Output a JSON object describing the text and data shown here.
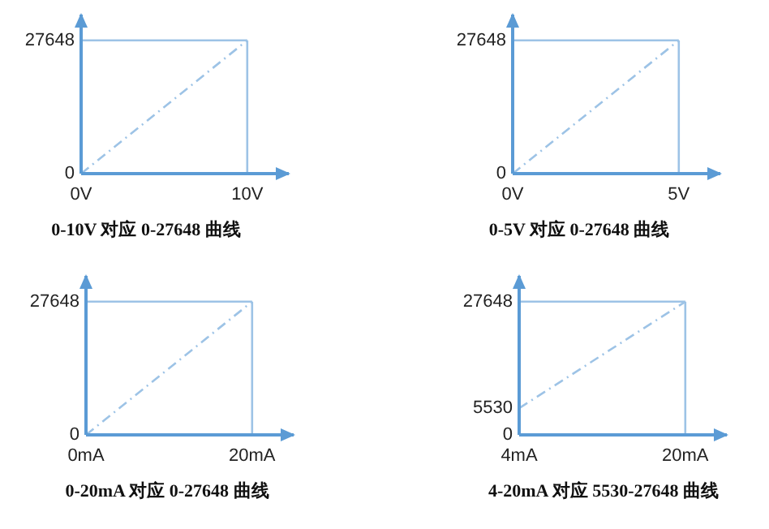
{
  "chart_data": [
    {
      "type": "line",
      "title": "0-10V 对应 0-27648 曲线",
      "x": [
        0,
        10
      ],
      "xlim": [
        0,
        12.5
      ],
      "ylim": [
        0,
        33000
      ],
      "xticks": [
        {
          "value": 0,
          "label": "0V"
        },
        {
          "value": 10,
          "label": "10V"
        }
      ],
      "yticks": [
        0,
        27648
      ],
      "series": [
        {
          "color": "#9dc3e6",
          "values": [
            0,
            27648
          ],
          "line_style": "dashed"
        }
      ],
      "ref_lines": [
        {
          "axis": "y",
          "value": 27648,
          "color": "#9dc3e6"
        },
        {
          "axis": "x",
          "value": 10,
          "color": "#9dc3e6"
        }
      ],
      "grid": false
    },
    {
      "type": "line",
      "title": "0-5V 对应 0-27648 曲线",
      "x": [
        0,
        5
      ],
      "xlim": [
        0,
        6.25
      ],
      "ylim": [
        0,
        33000
      ],
      "xticks": [
        {
          "value": 0,
          "label": "0V"
        },
        {
          "value": 5,
          "label": "5V"
        }
      ],
      "yticks": [
        0,
        27648
      ],
      "series": [
        {
          "color": "#9dc3e6",
          "values": [
            0,
            27648
          ],
          "line_style": "dashed"
        }
      ],
      "ref_lines": [
        {
          "axis": "y",
          "value": 27648,
          "color": "#9dc3e6"
        },
        {
          "axis": "x",
          "value": 5,
          "color": "#9dc3e6"
        }
      ],
      "grid": false
    },
    {
      "type": "line",
      "title": "0-20mA 对应 0-27648 曲线",
      "x": [
        0,
        20
      ],
      "xlim": [
        0,
        25
      ],
      "ylim": [
        0,
        33000
      ],
      "xticks": [
        {
          "value": 0,
          "label": "0mA"
        },
        {
          "value": 20,
          "label": "20mA"
        }
      ],
      "yticks": [
        0,
        27648
      ],
      "series": [
        {
          "color": "#9dc3e6",
          "values": [
            0,
            27648
          ],
          "line_style": "dashed"
        }
      ],
      "ref_lines": [
        {
          "axis": "y",
          "value": 27648,
          "color": "#9dc3e6"
        },
        {
          "axis": "x",
          "value": 20,
          "color": "#9dc3e6"
        }
      ],
      "grid": false
    },
    {
      "type": "line",
      "title": "4-20mA 对应 5530-27648 曲线",
      "x": [
        4,
        20
      ],
      "xlim": [
        4,
        24
      ],
      "ylim": [
        0,
        33000
      ],
      "xticks": [
        {
          "value": 4,
          "label": "4mA"
        },
        {
          "value": 20,
          "label": "20mA"
        }
      ],
      "yticks": [
        0,
        5530,
        27648
      ],
      "series": [
        {
          "color": "#9dc3e6",
          "values": [
            5530,
            27648
          ],
          "line_style": "dashed"
        }
      ],
      "ref_lines": [
        {
          "axis": "y",
          "value": 27648,
          "color": "#9dc3e6"
        },
        {
          "axis": "x",
          "value": 20,
          "color": "#9dc3e6"
        }
      ],
      "grid": false
    }
  ]
}
